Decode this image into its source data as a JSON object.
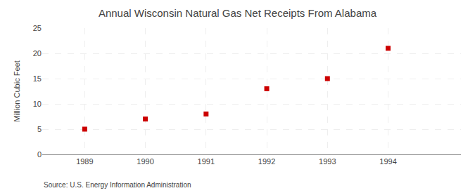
{
  "chart_data": {
    "type": "scatter",
    "title": "Annual Wisconsin Natural Gas Net Receipts From Alabama",
    "ylabel": "Million Cubic Feet",
    "annotations": [
      "Source: U.S. Energy Information Administration"
    ],
    "x": [
      1989,
      1990,
      1991,
      1992,
      1993,
      1994
    ],
    "values": [
      5.0,
      7.0,
      8.0,
      13.0,
      15.0,
      21.0
    ],
    "xlim": [
      1988.3,
      1995.2
    ],
    "xticks": [
      1989,
      1990,
      1991,
      1992,
      1993,
      1994
    ],
    "ylim": [
      0,
      25
    ],
    "yticks": [
      0,
      5,
      10,
      15,
      20,
      25
    ],
    "color": "#cc0000",
    "marker": "square",
    "grid": true
  }
}
